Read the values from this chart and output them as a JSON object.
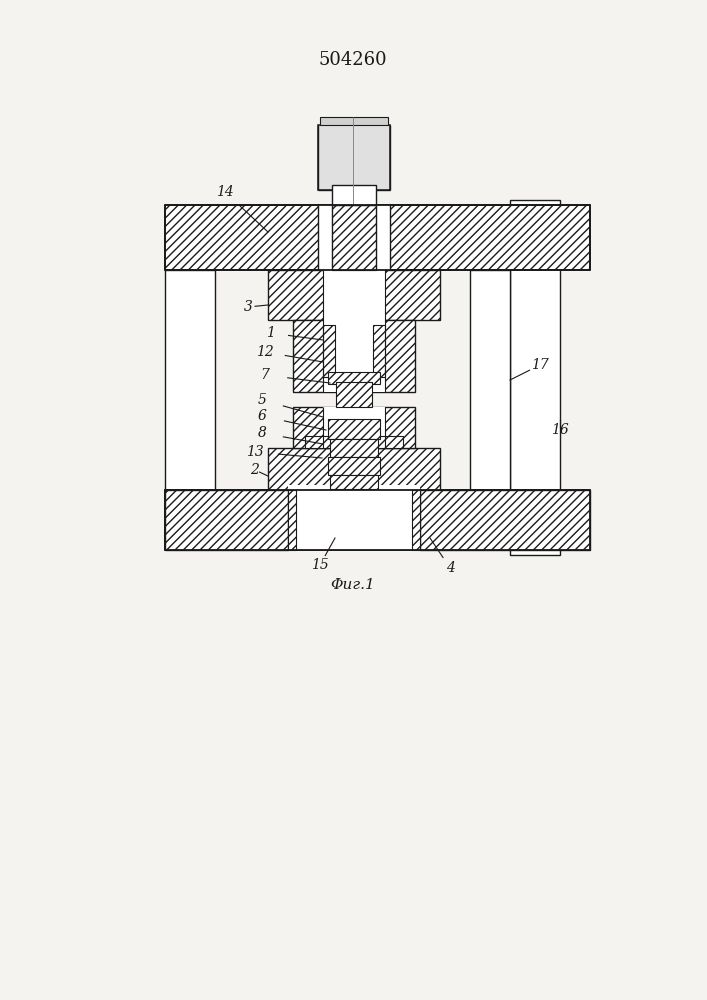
{
  "title": "504260",
  "fig_label": "Φиг.1",
  "bg_color": "#f5f3f0",
  "line_color": "#1a1a1a",
  "draw_bg": "#f5f3f0"
}
